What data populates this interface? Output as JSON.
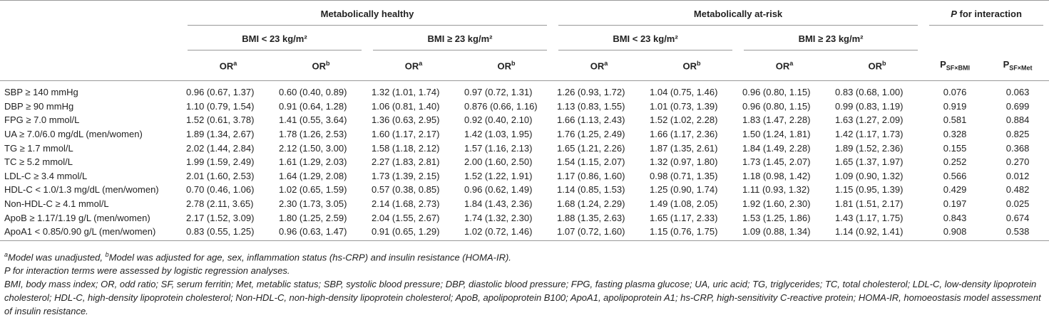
{
  "table": {
    "groups": [
      {
        "name": "Metabolically healthy",
        "subgroups": [
          "BMI < 23 kg/m²",
          "BMI ≥ 23 kg/m²"
        ]
      },
      {
        "name": "Metabolically at-risk",
        "subgroups": [
          "BMI < 23 kg/m²",
          "BMI ≥ 23 kg/m²"
        ]
      }
    ],
    "interaction": {
      "italic": "P",
      "rest": " for interaction"
    },
    "or_columns": [
      {
        "text": "OR",
        "sup": "a"
      },
      {
        "text": "OR",
        "sup": "b"
      },
      {
        "text": "OR",
        "sup": "a"
      },
      {
        "text": "OR",
        "sup": "b"
      },
      {
        "text": "OR",
        "sup": "a"
      },
      {
        "text": "OR",
        "sup": "b"
      },
      {
        "text": "OR",
        "sup": "a"
      },
      {
        "text": "OR",
        "sup": "b"
      }
    ],
    "p_columns": [
      {
        "text": "P",
        "sub": "SF×BMI"
      },
      {
        "text": "P",
        "sub": "SF×Met"
      }
    ],
    "rows": [
      [
        "SBP ≥ 140 mmHg",
        "0.96 (0.67, 1.37)",
        "0.60 (0.40, 0.89)",
        "1.32 (1.01, 1.74)",
        "0.97 (0.72, 1.31)",
        "1.26 (0.93, 1.72)",
        "1.04 (0.75, 1.46)",
        "0.96 (0.80, 1.15)",
        "0.83 (0.68, 1.00)",
        "0.076",
        "0.063"
      ],
      [
        "DBP ≥ 90 mmHg",
        "1.10 (0.79, 1.54)",
        "0.91 (0.64, 1.28)",
        "1.06 (0.81, 1.40)",
        "0.876 (0.66, 1.16)",
        "1.13 (0.83, 1.55)",
        "1.01 (0.73, 1.39)",
        "0.96 (0.80, 1.15)",
        "0.99 (0.83, 1.19)",
        "0.919",
        "0.699"
      ],
      [
        "FPG ≥ 7.0 mmol/L",
        "1.52 (0.61, 3.78)",
        "1.41 (0.55, 3.64)",
        "1.36 (0.63, 2.95)",
        "0.92 (0.40, 2.10)",
        "1.66 (1.13, 2.43)",
        "1.52 (1.02, 2.28)",
        "1.83 (1.47, 2.28)",
        "1.63 (1.27, 2.09)",
        "0.581",
        "0.884"
      ],
      [
        "UA ≥ 7.0/6.0 mg/dL (men/women)",
        "1.89 (1.34, 2.67)",
        "1.78 (1.26, 2.53)",
        "1.60 (1.17, 2.17)",
        "1.42 (1.03, 1.95)",
        "1.76 (1.25, 2.49)",
        "1.66 (1.17, 2.36)",
        "1.50 (1.24, 1.81)",
        "1.42 (1.17, 1.73)",
        "0.328",
        "0.825"
      ],
      [
        "TG ≥ 1.7 mmol/L",
        "2.02 (1.44, 2.84)",
        "2.12 (1.50, 3.00)",
        "1.58 (1.18, 2.12)",
        "1.57 (1.16, 2.13)",
        "1.65 (1.21, 2.26)",
        "1.87 (1.35, 2.61)",
        "1.84 (1.49, 2.28)",
        "1.89 (1.52, 2.36)",
        "0.155",
        "0.368"
      ],
      [
        "TC ≥ 5.2 mmol/L",
        "1.99 (1.59, 2.49)",
        "1.61 (1.29, 2.03)",
        "2.27 (1.83, 2.81)",
        "2.00 (1.60, 2.50)",
        "1.54 (1.15, 2.07)",
        "1.32 (0.97, 1.80)",
        "1.73 (1.45, 2.07)",
        "1.65 (1.37, 1.97)",
        "0.252",
        "0.270"
      ],
      [
        "LDL-C ≥ 3.4 mmol/L",
        "2.01 (1.60, 2.53)",
        "1.64 (1.29, 2.08)",
        "1.73 (1.39, 2.15)",
        "1.52 (1.22, 1.91)",
        "1.17 (0.86, 1.60)",
        "0.98 (0.71, 1.35)",
        "1.18 (0.98, 1.42)",
        "1.09 (0.90, 1.32)",
        "0.566",
        "0.012"
      ],
      [
        "HDL-C < 1.0/1.3 mg/dL (men/women)",
        "0.70 (0.46, 1.06)",
        "1.02 (0.65, 1.59)",
        "0.57 (0.38, 0.85)",
        "0.96 (0.62, 1.49)",
        "1.14 (0.85, 1.53)",
        "1.25 (0.90, 1.74)",
        "1.11 (0.93, 1.32)",
        "1.15 (0.95, 1.39)",
        "0.429",
        "0.482"
      ],
      [
        "Non-HDL-C ≥ 4.1 mmol/L",
        "2.78 (2.11, 3.65)",
        "2.30 (1.73, 3.05)",
        "2.14 (1.68, 2.73)",
        "1.84 (1.43, 2.36)",
        "1.68 (1.24, 2.29)",
        "1.49 (1.08, 2.05)",
        "1.92 (1.60, 2.30)",
        "1.81 (1.51, 2.17)",
        "0.197",
        "0.025"
      ],
      [
        "ApoB ≥ 1.17/1.19 g/L (men/women)",
        "2.17 (1.52, 3.09)",
        "1.80 (1.25, 2.59)",
        "2.04 (1.55, 2.67)",
        "1.74 (1.32, 2.30)",
        "1.88 (1.35, 2.63)",
        "1.65 (1.17, 2.33)",
        "1.53 (1.25, 1.86)",
        "1.43 (1.17, 1.75)",
        "0.843",
        "0.674"
      ],
      [
        "ApoA1 < 0.85/0.90 g/L (men/women)",
        "0.83 (0.55, 1.25)",
        "0.96 (0.63, 1.47)",
        "0.91 (0.65, 1.29)",
        "1.02 (0.72, 1.46)",
        "1.07 (0.72, 1.60)",
        "1.15 (0.76, 1.75)",
        "1.09 (0.88, 1.34)",
        "1.14 (0.92, 1.41)",
        "0.908",
        "0.538"
      ]
    ]
  },
  "footnotes": {
    "adjust": [
      {
        "sup": "a"
      },
      {
        "text": "Model was unadjusted, "
      },
      {
        "sup": "b"
      },
      {
        "text": "Model was adjusted for age, sex, inflammation status (hs-CRP) and insulin resistance (HOMA-IR)."
      }
    ],
    "interaction": {
      "italic": "P",
      "rest": " for interaction terms were assessed by logistic regression analyses."
    },
    "abbreviations": "BMI, body mass index; OR, odd ratio; SF, serum ferritin; Met, metablic status; SBP, systolic blood pressure; DBP, diastolic blood pressure; FPG, fasting plasma glucose; UA, uric acid; TG, triglycerides; TC, total cholesterol; LDL-C, low-density lipoprotein cholesterol; HDL-C, high-density lipoprotein cholesterol; Non-HDL-C, non-high-density lipoprotein cholesterol; ApoB, apolipoprotein B100; ApoA1, apolipoprotein A1; hs-CRP, high-sensitivity C-reactive protein; HOMA-IR, homoeostasis model assessment of insulin resistance."
  }
}
